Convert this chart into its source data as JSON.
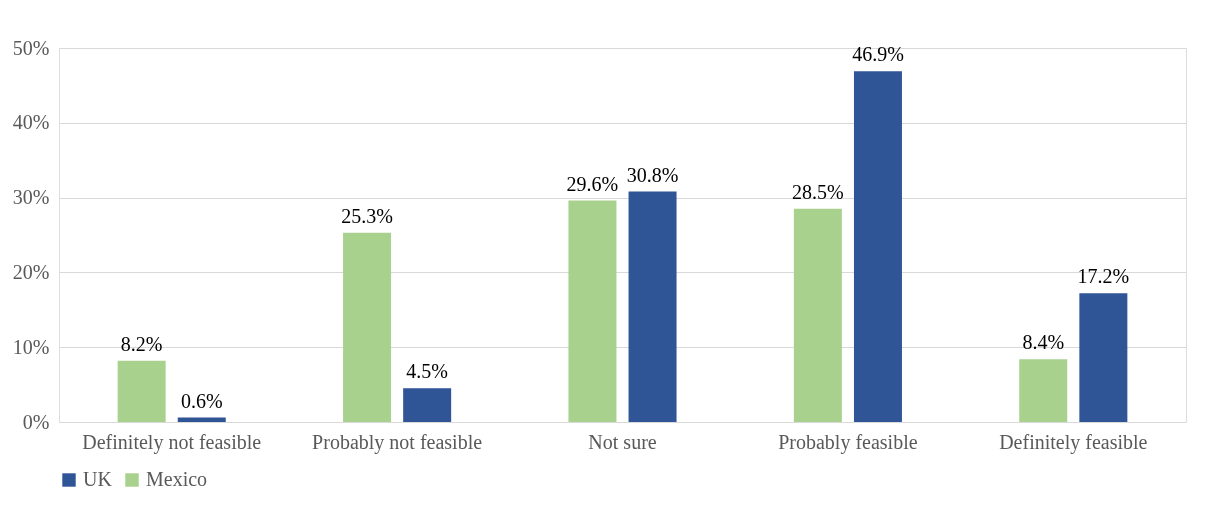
{
  "chart_data": {
    "type": "bar",
    "categories": [
      "Definitely not feasible",
      "Probably not feasible",
      "Not sure",
      "Probably feasible",
      "Definitely feasible"
    ],
    "series": [
      {
        "name": "Mexico",
        "color": "#a9d18e",
        "values": [
          8.2,
          25.3,
          29.6,
          28.5,
          8.4
        ],
        "value_labels": [
          "8.2%",
          "25.3%",
          "29.6%",
          "28.5%",
          "8.4%"
        ]
      },
      {
        "name": "UK",
        "color": "#2f5597",
        "values": [
          0.6,
          4.5,
          30.8,
          46.9,
          17.2
        ],
        "value_labels": [
          "0.6%",
          "4.5%",
          "30.8%",
          "46.9%",
          "17.2%"
        ]
      }
    ],
    "ylim": [
      0,
      50
    ],
    "yticks": [
      {
        "value": 0,
        "label": "0%"
      },
      {
        "value": 10,
        "label": "10%"
      },
      {
        "value": 20,
        "label": "20%"
      },
      {
        "value": 30,
        "label": "30%"
      },
      {
        "value": 40,
        "label": "40%"
      },
      {
        "value": 50,
        "label": "50%"
      }
    ],
    "grid": "y",
    "legend": "bottom"
  }
}
